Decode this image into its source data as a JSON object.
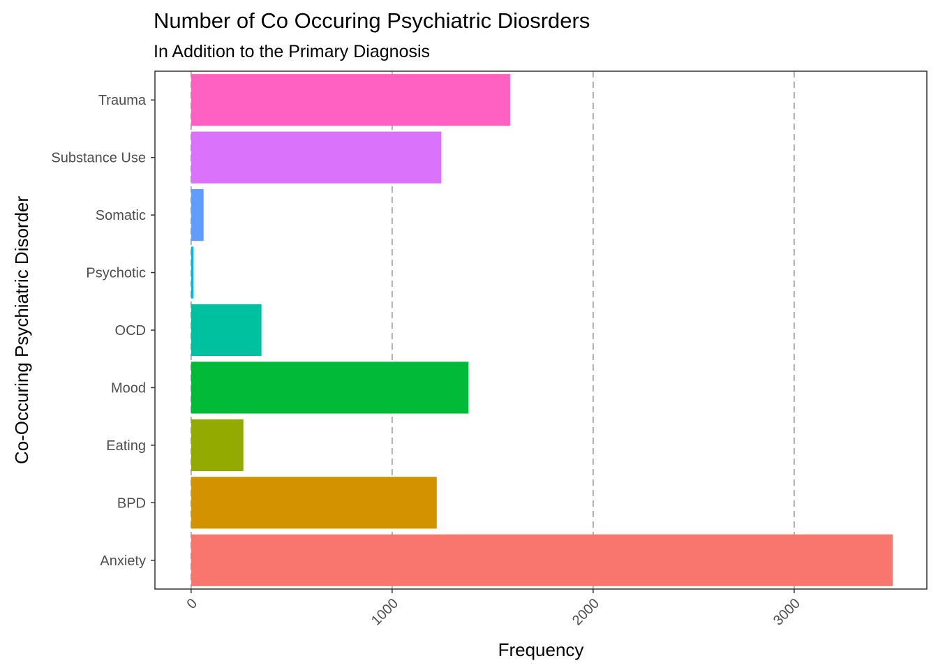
{
  "chart_data": {
    "type": "bar",
    "orientation": "horizontal",
    "title": "Number of Co Occuring Psychiatric Diosrders",
    "subtitle": "In Addition to the Primary Diagnosis",
    "xlabel": "Frequency",
    "ylabel": "Co-Occuring Psychiatric Disorder",
    "categories": [
      "Anxiety",
      "BPD",
      "Eating",
      "Mood",
      "OCD",
      "Psychotic",
      "Somatic",
      "Substance Use",
      "Trauma"
    ],
    "values": [
      3490,
      1222,
      260,
      1380,
      350,
      12,
      62,
      1245,
      1587
    ],
    "colors": [
      "#F8766D",
      "#D39200",
      "#93AA00",
      "#00BA38",
      "#00C19F",
      "#00B9E3",
      "#619CFF",
      "#DB72FB",
      "#FF61C3"
    ],
    "xlim": [
      -180,
      3660
    ],
    "xticks": [
      0,
      1000,
      2000,
      3000
    ],
    "xtick_labels": [
      "0",
      "1000",
      "2000",
      "3000"
    ],
    "xtick_rotation": -45,
    "grid": "vertical dashed major lines",
    "legend": "none"
  }
}
